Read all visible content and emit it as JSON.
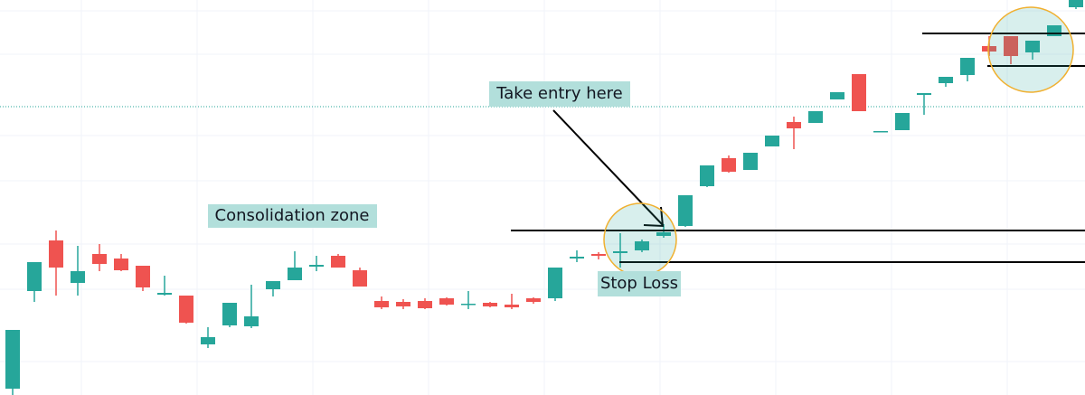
{
  "chart_data": {
    "type": "candlestick",
    "ylim": [
      0,
      437
    ],
    "up_color": "#26a69a",
    "down_color": "#ef5350",
    "annotations": [
      "Take entry here",
      "Consolidation zone",
      "Stop Loss"
    ],
    "open": [
      7,
      115,
      171,
      124,
      156,
      151,
      143,
      111,
      110,
      56,
      77,
      76,
      117,
      127,
      142,
      154,
      138,
      104,
      103,
      104,
      107,
      100,
      102,
      100,
      107,
      107,
      151,
      156,
      157,
      160,
      176,
      187,
      231,
      262,
      249,
      275,
      302,
      301,
      327,
      355,
      292,
      293,
      332,
      345,
      354,
      386,
      397,
      379,
      397,
      429
    ],
    "high": [
      72,
      147,
      182,
      165,
      167,
      156,
      143,
      132,
      110,
      75,
      102,
      122,
      126,
      159,
      154,
      156,
      141,
      109,
      106,
      107,
      108,
      115,
      103,
      112,
      108,
      141,
      160,
      158,
      179,
      172,
      189,
      221,
      254,
      265,
      268,
      287,
      308,
      314,
      335,
      355,
      292,
      312,
      334,
      352,
      373,
      397,
      397,
      392,
      409,
      437
    ],
    "low": [
      0,
      103,
      110,
      110,
      137,
      137,
      115,
      110,
      79,
      52,
      75,
      74,
      109,
      127,
      137,
      141,
      120,
      95,
      95,
      95,
      99,
      95,
      97,
      95,
      101,
      104,
      147,
      150,
      141,
      158,
      174,
      186,
      230,
      246,
      249,
      275,
      272,
      301,
      327,
      314,
      292,
      293,
      310,
      341,
      347,
      375,
      366,
      371,
      397,
      427
    ],
    "close": [
      72,
      147,
      141,
      137,
      145,
      138,
      119,
      113,
      80,
      64,
      102,
      87,
      126,
      141,
      144,
      141,
      120,
      97,
      98,
      96,
      100,
      101,
      98,
      97,
      103,
      141,
      153,
      154,
      159,
      170,
      180,
      221,
      254,
      247,
      268,
      287,
      295,
      314,
      335,
      314,
      292,
      312,
      334,
      352,
      373,
      380,
      375,
      392,
      409,
      437
    ]
  }
}
